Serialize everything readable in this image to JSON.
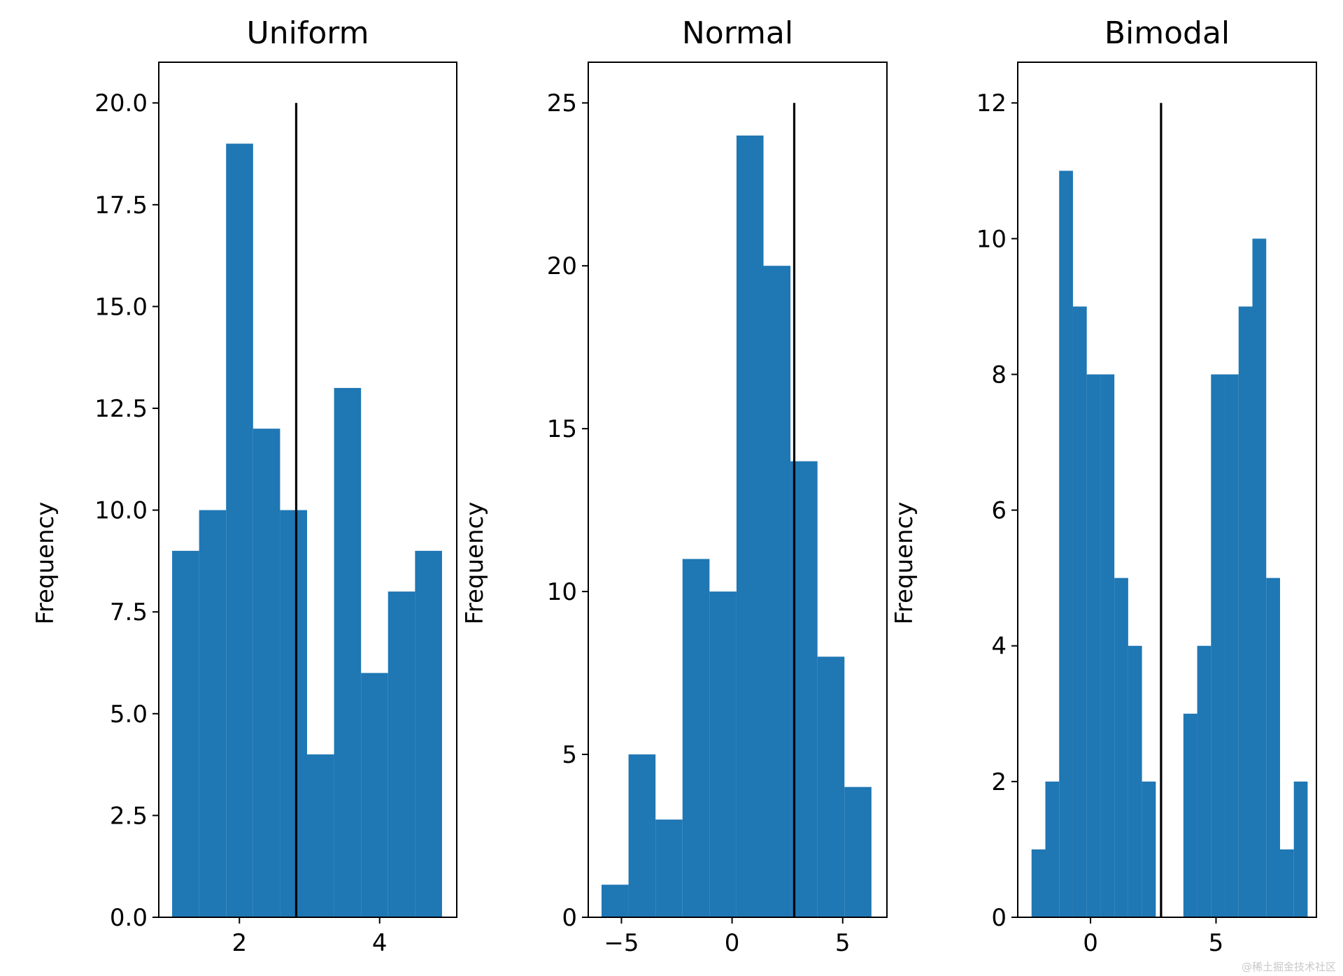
{
  "figure": {
    "watermark": "@稀土掘金技术社区"
  },
  "colors": {
    "bar": "#1f77b4",
    "mean_line": "#000000",
    "axes": "#000000",
    "background": "#ffffff"
  },
  "chart_data": [
    {
      "type": "bar",
      "title": "Uniform",
      "ylabel": "Frequency",
      "xlabel": "",
      "xlim": [
        0.85,
        5.1
      ],
      "ylim": [
        0,
        21
      ],
      "xticks": [
        {
          "value": 2,
          "label": "2"
        },
        {
          "value": 4,
          "label": "4"
        }
      ],
      "yticks": [
        {
          "value": 0,
          "label": "0.0"
        },
        {
          "value": 2.5,
          "label": "2.5"
        },
        {
          "value": 5,
          "label": "5.0"
        },
        {
          "value": 7.5,
          "label": "7.5"
        },
        {
          "value": 10,
          "label": "10.0"
        },
        {
          "value": 12.5,
          "label": "12.5"
        },
        {
          "value": 15,
          "label": "15.0"
        },
        {
          "value": 17.5,
          "label": "17.5"
        },
        {
          "value": 20,
          "label": "20.0"
        }
      ],
      "bin_edges": [
        1.04,
        1.425,
        1.81,
        2.195,
        2.58,
        2.965,
        3.35,
        3.735,
        4.12,
        4.505,
        4.89
      ],
      "values": [
        9,
        10,
        19,
        12,
        10,
        4,
        13,
        6,
        8,
        9
      ],
      "mean_line": {
        "x": 2.81,
        "y_from": 0,
        "y_to": 20
      },
      "grid": false,
      "legend": "none"
    },
    {
      "type": "bar",
      "title": "Normal",
      "ylabel": "Frequency",
      "xlabel": "",
      "xlim": [
        -6.5,
        7.0
      ],
      "ylim": [
        0,
        26.25
      ],
      "xticks": [
        {
          "value": -5,
          "label": "−5"
        },
        {
          "value": 0,
          "label": "0"
        },
        {
          "value": 5,
          "label": "5"
        }
      ],
      "yticks": [
        {
          "value": 0,
          "label": "0"
        },
        {
          "value": 5,
          "label": "5"
        },
        {
          "value": 10,
          "label": "10"
        },
        {
          "value": 15,
          "label": "15"
        },
        {
          "value": 20,
          "label": "20"
        },
        {
          "value": 25,
          "label": "25"
        }
      ],
      "bin_edges": [
        -5.9,
        -4.68,
        -3.46,
        -2.24,
        -1.02,
        0.2,
        1.42,
        2.64,
        3.86,
        5.08,
        6.3
      ],
      "values": [
        1,
        5,
        3,
        11,
        10,
        24,
        20,
        14,
        8,
        4
      ],
      "mean_line": {
        "x": 2.81,
        "y_from": 0,
        "y_to": 25
      },
      "grid": false,
      "legend": "none"
    },
    {
      "type": "bar",
      "title": "Bimodal",
      "ylabel": "Frequency",
      "xlabel": "",
      "xlim": [
        -2.9,
        9.0
      ],
      "ylim": [
        0,
        12.6
      ],
      "xticks": [
        {
          "value": 0,
          "label": "0"
        },
        {
          "value": 5,
          "label": "5"
        }
      ],
      "yticks": [
        {
          "value": 0,
          "label": "0"
        },
        {
          "value": 2,
          "label": "2"
        },
        {
          "value": 4,
          "label": "4"
        },
        {
          "value": 6,
          "label": "6"
        },
        {
          "value": 8,
          "label": "8"
        },
        {
          "value": 10,
          "label": "10"
        },
        {
          "value": 12,
          "label": "12"
        }
      ],
      "bin_edges": [
        -2.35,
        -1.8,
        -1.25,
        -0.7,
        -0.15,
        0.4,
        0.95,
        1.5,
        2.05,
        2.6,
        3.15,
        3.7,
        4.25,
        4.8,
        5.35,
        5.9,
        6.45,
        7.0,
        7.55,
        8.1,
        8.65
      ],
      "values": [
        1,
        2,
        11,
        9,
        8,
        8,
        5,
        4,
        2,
        0,
        0,
        3,
        4,
        8,
        8,
        9,
        10,
        5,
        1,
        2
      ],
      "mean_line": {
        "x": 2.81,
        "y_from": 0,
        "y_to": 12
      },
      "grid": false,
      "legend": "none"
    }
  ]
}
